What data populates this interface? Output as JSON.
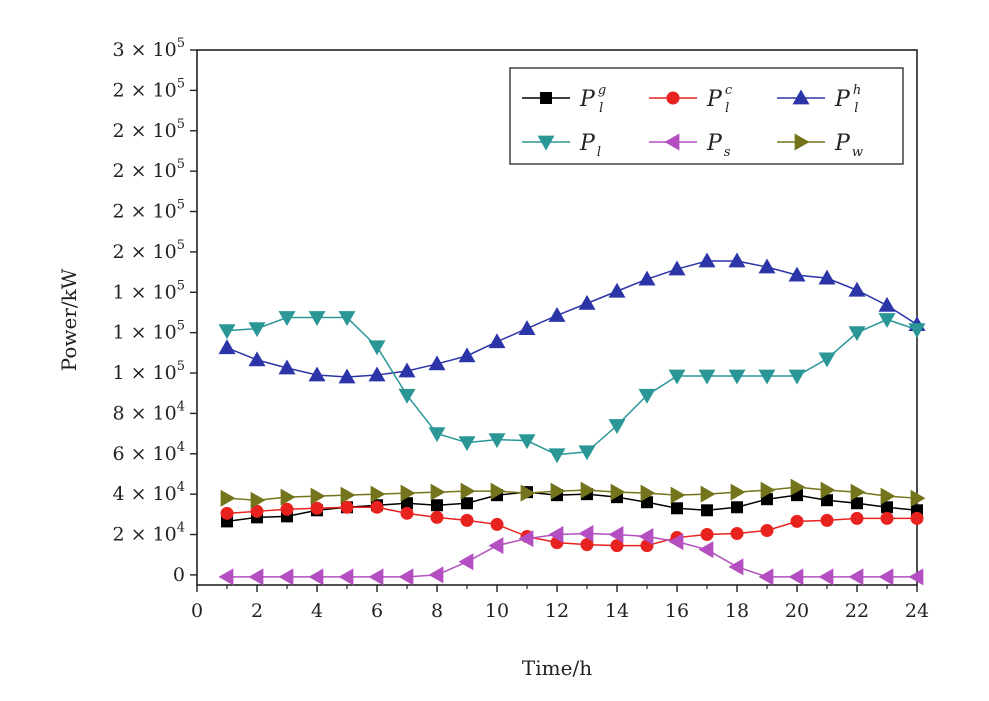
{
  "chart_data": {
    "type": "line",
    "xlabel": "Time/h",
    "ylabel": "Power/kW",
    "xlim": [
      0,
      24
    ],
    "ylim": [
      -5000,
      260000
    ],
    "x_ticks": [
      0,
      2,
      4,
      6,
      8,
      10,
      12,
      14,
      16,
      18,
      20,
      22,
      24
    ],
    "y_ticks": [
      {
        "value": 0,
        "label": "0"
      },
      {
        "value": 20000,
        "label": "2 × 10",
        "exp": "4"
      },
      {
        "value": 40000,
        "label": "4 × 10",
        "exp": "4"
      },
      {
        "value": 60000,
        "label": "6 × 10",
        "exp": "4"
      },
      {
        "value": 80000,
        "label": "8 × 10",
        "exp": "4"
      },
      {
        "value": 100000,
        "label": "1 × 10",
        "exp": "5"
      },
      {
        "value": 120000,
        "label": "1 × 10",
        "exp": "5"
      },
      {
        "value": 140000,
        "label": "1 × 10",
        "exp": "5"
      },
      {
        "value": 160000,
        "label": "2 × 10",
        "exp": "5"
      },
      {
        "value": 180000,
        "label": "2 × 10",
        "exp": "5"
      },
      {
        "value": 200000,
        "label": "2 × 10",
        "exp": "5"
      },
      {
        "value": 220000,
        "label": "2 × 10",
        "exp": "5"
      },
      {
        "value": 240000,
        "label": "2 × 10",
        "exp": "5"
      },
      {
        "value": 260000,
        "label": "3 × 10",
        "exp": "5"
      }
    ],
    "x": [
      1,
      2,
      3,
      4,
      5,
      6,
      7,
      8,
      9,
      10,
      11,
      12,
      13,
      14,
      15,
      16,
      17,
      18,
      19,
      20,
      21,
      22,
      23,
      24
    ],
    "legend_position": "top-right",
    "series": [
      {
        "name": "P",
        "sub": "l",
        "sup": "g",
        "color": "#000000",
        "marker": "square",
        "values": [
          26500,
          28500,
          29000,
          32000,
          33500,
          34500,
          35500,
          34500,
          35500,
          39500,
          41000,
          39500,
          40000,
          38500,
          36000,
          33000,
          32000,
          33500,
          37500,
          39500,
          37000,
          35500,
          33500,
          32000
        ]
      },
      {
        "name": "P",
        "sub": "l",
        "sup": "c",
        "color": "#e8221e",
        "marker": "circle",
        "values": [
          30500,
          31500,
          32500,
          33000,
          33500,
          33500,
          30500,
          28500,
          27000,
          25000,
          19000,
          16000,
          15000,
          14500,
          14500,
          18500,
          20000,
          20500,
          22000,
          26500,
          27000,
          28000,
          28000,
          28000
        ]
      },
      {
        "name": "P",
        "sub": "l",
        "sup": "h",
        "color": "#2b35a8",
        "marker": "triangle-up",
        "values": [
          112500,
          106500,
          102500,
          99000,
          98000,
          99000,
          101000,
          104500,
          108500,
          115500,
          122000,
          128500,
          134500,
          140500,
          146500,
          151500,
          155500,
          155500,
          152500,
          148500,
          147000,
          141000,
          133500,
          124000
        ]
      },
      {
        "name": "P",
        "sub": "l",
        "sup": "",
        "color": "#2a9696",
        "marker": "triangle-down",
        "values": [
          121000,
          122000,
          127500,
          127500,
          127500,
          113000,
          89000,
          70000,
          65500,
          67000,
          66500,
          59500,
          61000,
          74000,
          89000,
          98500,
          98500,
          98500,
          98500,
          98500,
          107000,
          120000,
          126500,
          121500
        ]
      },
      {
        "name": "P",
        "sub": "s",
        "sup": "",
        "color": "#b34fc0",
        "marker": "triangle-left",
        "values": [
          -1000,
          -1000,
          -1000,
          -1000,
          -1000,
          -1000,
          -1000,
          0,
          6500,
          14500,
          18000,
          20000,
          20500,
          20000,
          19000,
          16500,
          12500,
          4000,
          -1000,
          -1000,
          -1000,
          -1000,
          -1000,
          -1000
        ]
      },
      {
        "name": "P",
        "sub": "w",
        "sup": "",
        "color": "#74741c",
        "marker": "triangle-right",
        "values": [
          38000,
          37000,
          38500,
          39000,
          39500,
          40000,
          40500,
          41000,
          41500,
          41500,
          40500,
          41500,
          42000,
          41000,
          40500,
          39500,
          40000,
          41000,
          42000,
          43500,
          42000,
          41000,
          39000,
          38000
        ]
      }
    ]
  }
}
